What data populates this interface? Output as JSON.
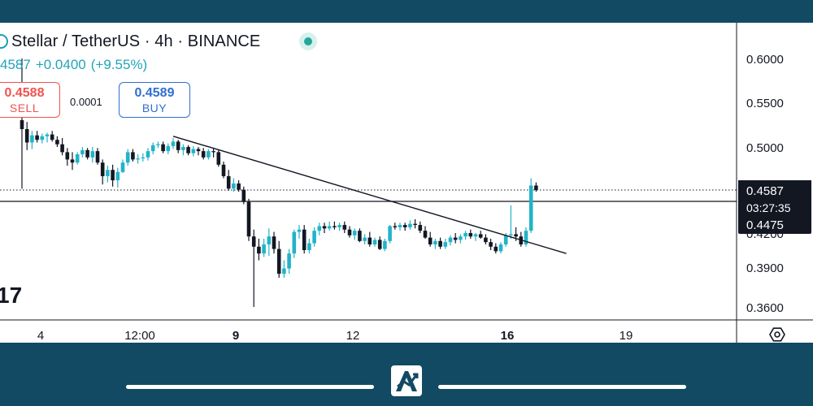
{
  "header": {
    "title": "Stellar / TetherUS · 4h · BINANCE",
    "last_price_partial": "4587",
    "change_abs": "+0.0400",
    "change_pct": "(+9.55%)"
  },
  "trade": {
    "sell_price": "0.4588",
    "sell_label": "SELL",
    "spread": "0.0001",
    "buy_price": "0.4589",
    "buy_label": "BUY"
  },
  "logo_text": "17",
  "colors": {
    "up": "#22b3c9",
    "down": "#131722",
    "accent": "#26a69a",
    "frame": "#124a63",
    "sell": "#ef5350",
    "buy": "#2f6fd0"
  },
  "icons": [
    "symbol-icon",
    "live-dot-icon",
    "settings-hexagon-icon",
    "brand-logo-icon"
  ],
  "chart_data": {
    "type": "candlestick",
    "y_axis_labels": [
      "0.6000",
      "0.5500",
      "0.5000",
      "0.4200",
      "0.3900",
      "0.3600"
    ],
    "x_axis_labels": [
      "4",
      "12:00",
      "9",
      "12",
      "16",
      "19"
    ],
    "bold_x_labels": [
      "9",
      "16"
    ],
    "price_marker": {
      "value": 0.4587,
      "label": "0.4587",
      "countdown": "03:27:35"
    },
    "level_marker": {
      "value": 0.4475,
      "label": "0.4475"
    },
    "trendline": {
      "from": {
        "bar": 30,
        "price": 0.512
      },
      "to": {
        "bar": 108,
        "price": 0.402
      }
    },
    "candles": [
      [
        0.53,
        0.6,
        0.46,
        0.52
      ],
      [
        0.52,
        0.528,
        0.497,
        0.505
      ],
      [
        0.505,
        0.518,
        0.498,
        0.513
      ],
      [
        0.513,
        0.518,
        0.505,
        0.508
      ],
      [
        0.508,
        0.515,
        0.504,
        0.512
      ],
      [
        0.512,
        0.516,
        0.505,
        0.514
      ],
      [
        0.514,
        0.518,
        0.506,
        0.508
      ],
      [
        0.508,
        0.512,
        0.5,
        0.503
      ],
      [
        0.503,
        0.51,
        0.492,
        0.495
      ],
      [
        0.495,
        0.499,
        0.482,
        0.488
      ],
      [
        0.488,
        0.495,
        0.478,
        0.485
      ],
      [
        0.485,
        0.495,
        0.483,
        0.493
      ],
      [
        0.493,
        0.5,
        0.49,
        0.497
      ],
      [
        0.497,
        0.499,
        0.488,
        0.49
      ],
      [
        0.49,
        0.5,
        0.485,
        0.496
      ],
      [
        0.496,
        0.499,
        0.483,
        0.485
      ],
      [
        0.485,
        0.488,
        0.464,
        0.472
      ],
      [
        0.472,
        0.482,
        0.466,
        0.478
      ],
      [
        0.478,
        0.483,
        0.462,
        0.468
      ],
      [
        0.468,
        0.48,
        0.461,
        0.476
      ],
      [
        0.476,
        0.488,
        0.475,
        0.485
      ],
      [
        0.485,
        0.498,
        0.482,
        0.495
      ],
      [
        0.495,
        0.498,
        0.486,
        0.488
      ],
      [
        0.488,
        0.493,
        0.484,
        0.489
      ],
      [
        0.489,
        0.494,
        0.486,
        0.49
      ],
      [
        0.49,
        0.499,
        0.487,
        0.496
      ],
      [
        0.496,
        0.505,
        0.493,
        0.502
      ],
      [
        0.502,
        0.506,
        0.499,
        0.503
      ],
      [
        0.503,
        0.506,
        0.494,
        0.496
      ],
      [
        0.496,
        0.504,
        0.493,
        0.501
      ],
      [
        0.501,
        0.51,
        0.498,
        0.506
      ],
      [
        0.506,
        0.508,
        0.494,
        0.497
      ],
      [
        0.497,
        0.503,
        0.492,
        0.5
      ],
      [
        0.5,
        0.502,
        0.492,
        0.494
      ],
      [
        0.494,
        0.501,
        0.491,
        0.498
      ],
      [
        0.498,
        0.5,
        0.492,
        0.496
      ],
      [
        0.496,
        0.499,
        0.488,
        0.49
      ],
      [
        0.49,
        0.498,
        0.488,
        0.496
      ],
      [
        0.496,
        0.499,
        0.49,
        0.495
      ],
      [
        0.495,
        0.497,
        0.481,
        0.483
      ],
      [
        0.483,
        0.486,
        0.47,
        0.472
      ],
      [
        0.472,
        0.478,
        0.458,
        0.46
      ],
      [
        0.46,
        0.47,
        0.457,
        0.465
      ],
      [
        0.465,
        0.468,
        0.457,
        0.459
      ],
      [
        0.459,
        0.462,
        0.445,
        0.447
      ],
      [
        0.447,
        0.45,
        0.413,
        0.417
      ],
      [
        0.417,
        0.423,
        0.36,
        0.408
      ],
      [
        0.408,
        0.415,
        0.396,
        0.402
      ],
      [
        0.402,
        0.415,
        0.399,
        0.41
      ],
      [
        0.41,
        0.424,
        0.4,
        0.417
      ],
      [
        0.417,
        0.421,
        0.402,
        0.406
      ],
      [
        0.406,
        0.413,
        0.382,
        0.385
      ],
      [
        0.385,
        0.396,
        0.382,
        0.389
      ],
      [
        0.389,
        0.406,
        0.385,
        0.402
      ],
      [
        0.402,
        0.423,
        0.398,
        0.421
      ],
      [
        0.421,
        0.427,
        0.415,
        0.423
      ],
      [
        0.423,
        0.427,
        0.402,
        0.405
      ],
      [
        0.405,
        0.415,
        0.402,
        0.411
      ],
      [
        0.411,
        0.425,
        0.408,
        0.422
      ],
      [
        0.422,
        0.429,
        0.418,
        0.426
      ],
      [
        0.426,
        0.429,
        0.42,
        0.424
      ],
      [
        0.424,
        0.43,
        0.422,
        0.426
      ],
      [
        0.426,
        0.43,
        0.423,
        0.425
      ],
      [
        0.425,
        0.429,
        0.422,
        0.427
      ],
      [
        0.427,
        0.43,
        0.42,
        0.423
      ],
      [
        0.423,
        0.426,
        0.416,
        0.418
      ],
      [
        0.418,
        0.424,
        0.414,
        0.422
      ],
      [
        0.422,
        0.424,
        0.412,
        0.413
      ],
      [
        0.413,
        0.419,
        0.41,
        0.416
      ],
      [
        0.416,
        0.421,
        0.408,
        0.41
      ],
      [
        0.41,
        0.416,
        0.408,
        0.414
      ],
      [
        0.414,
        0.417,
        0.405,
        0.406
      ],
      [
        0.406,
        0.415,
        0.404,
        0.413
      ],
      [
        0.413,
        0.427,
        0.411,
        0.426
      ],
      [
        0.426,
        0.429,
        0.423,
        0.425
      ],
      [
        0.425,
        0.429,
        0.422,
        0.427
      ],
      [
        0.427,
        0.429,
        0.422,
        0.425
      ],
      [
        0.425,
        0.431,
        0.423,
        0.428
      ],
      [
        0.428,
        0.432,
        0.424,
        0.427
      ],
      [
        0.427,
        0.43,
        0.42,
        0.422
      ],
      [
        0.422,
        0.426,
        0.415,
        0.416
      ],
      [
        0.416,
        0.421,
        0.408,
        0.41
      ],
      [
        0.41,
        0.415,
        0.406,
        0.413
      ],
      [
        0.413,
        0.416,
        0.406,
        0.408
      ],
      [
        0.408,
        0.415,
        0.406,
        0.412
      ],
      [
        0.412,
        0.418,
        0.409,
        0.416
      ],
      [
        0.416,
        0.42,
        0.411,
        0.414
      ],
      [
        0.414,
        0.419,
        0.411,
        0.417
      ],
      [
        0.417,
        0.422,
        0.414,
        0.42
      ],
      [
        0.42,
        0.423,
        0.415,
        0.417
      ],
      [
        0.417,
        0.42,
        0.413,
        0.419
      ],
      [
        0.419,
        0.422,
        0.415,
        0.416
      ],
      [
        0.416,
        0.419,
        0.41,
        0.412
      ],
      [
        0.412,
        0.415,
        0.405,
        0.408
      ],
      [
        0.408,
        0.411,
        0.402,
        0.404
      ],
      [
        0.404,
        0.412,
        0.402,
        0.41
      ],
      [
        0.41,
        0.42,
        0.408,
        0.418
      ],
      [
        0.418,
        0.444,
        0.415,
        0.419
      ],
      [
        0.419,
        0.425,
        0.413,
        0.417
      ],
      [
        0.417,
        0.421,
        0.408,
        0.41
      ],
      [
        0.41,
        0.425,
        0.408,
        0.422
      ],
      [
        0.422,
        0.47,
        0.42,
        0.463
      ],
      [
        0.463,
        0.466,
        0.457,
        0.4587
      ]
    ]
  }
}
